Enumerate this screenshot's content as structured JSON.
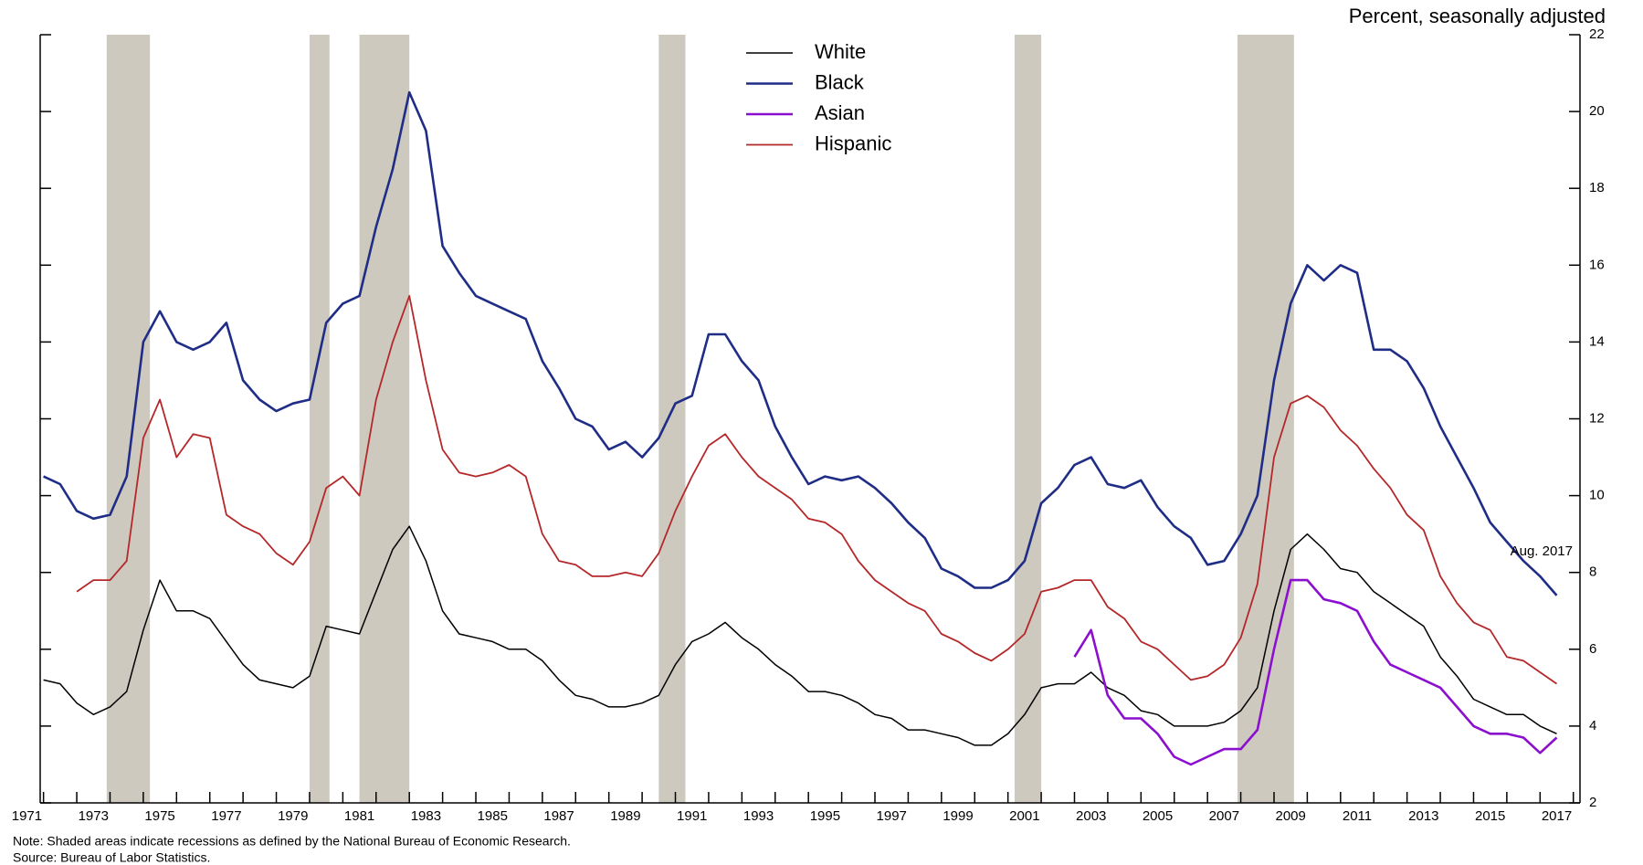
{
  "chart_data": {
    "type": "line",
    "y_label": "Percent, seasonally adjusted",
    "note": "Note: Shaded areas indicate recessions as defined by the National Bureau of Economic Research.",
    "source": "Source: Bureau of Labor Statistics.",
    "annotation": "Aug. 2017",
    "legend": "upper center",
    "xlim": [
      1971.9,
      2018.2
    ],
    "ylim": [
      2,
      22
    ],
    "yticks": [
      2,
      4,
      6,
      8,
      10,
      12,
      14,
      16,
      18,
      20,
      22
    ],
    "xticks": [
      {
        "value": 1971.5,
        "label": "1971"
      },
      {
        "value": 1973.5,
        "label": "1973"
      },
      {
        "value": 1975.5,
        "label": "1975"
      },
      {
        "value": 1977.5,
        "label": "1977"
      },
      {
        "value": 1979.5,
        "label": "1979"
      },
      {
        "value": 1981.5,
        "label": "1981"
      },
      {
        "value": 1983.5,
        "label": "1983"
      },
      {
        "value": 1985.5,
        "label": "1985"
      },
      {
        "value": 1987.5,
        "label": "1987"
      },
      {
        "value": 1989.5,
        "label": "1989"
      },
      {
        "value": 1991.5,
        "label": "1991"
      },
      {
        "value": 1993.5,
        "label": "1993"
      },
      {
        "value": 1995.5,
        "label": "1995"
      },
      {
        "value": 1997.5,
        "label": "1997"
      },
      {
        "value": 1999.5,
        "label": "1999"
      },
      {
        "value": 2001.5,
        "label": "2001"
      },
      {
        "value": 2003.5,
        "label": "2003"
      },
      {
        "value": 2005.5,
        "label": "2005"
      },
      {
        "value": 2007.5,
        "label": "2007"
      },
      {
        "value": 2009.5,
        "label": "2009"
      },
      {
        "value": 2011.5,
        "label": "2011"
      },
      {
        "value": 2013.5,
        "label": "2013"
      },
      {
        "value": 2015.5,
        "label": "2015"
      },
      {
        "value": 2017.5,
        "label": "2017"
      }
    ],
    "xtickmarks": [
      1972,
      1973,
      1974,
      1975,
      1976,
      1977,
      1978,
      1979,
      1980,
      1981,
      1982,
      1983,
      1984,
      1985,
      1986,
      1987,
      1988,
      1989,
      1990,
      1991,
      1992,
      1993,
      1994,
      1995,
      1996,
      1997,
      1998,
      1999,
      2000,
      2001,
      2002,
      2003,
      2004,
      2005,
      2006,
      2007,
      2008,
      2009,
      2010,
      2011,
      2012,
      2013,
      2014,
      2015,
      2016,
      2017,
      2018
    ],
    "recession_color": "#cdc9bf",
    "recessions": [
      [
        1973.9,
        1975.2
      ],
      [
        1980.0,
        1980.6
      ],
      [
        1981.5,
        1983.0
      ],
      [
        1990.5,
        1991.3
      ],
      [
        2001.2,
        2002.0
      ],
      [
        2007.9,
        2009.6
      ]
    ],
    "x": [
      1972.0,
      1972.5,
      1973.0,
      1973.5,
      1974.0,
      1974.5,
      1975.0,
      1975.5,
      1976.0,
      1976.5,
      1977.0,
      1977.5,
      1978.0,
      1978.5,
      1979.0,
      1979.5,
      1980.0,
      1980.5,
      1981.0,
      1981.5,
      1982.0,
      1982.5,
      1983.0,
      1983.5,
      1984.0,
      1984.5,
      1985.0,
      1985.5,
      1986.0,
      1986.5,
      1987.0,
      1987.5,
      1988.0,
      1988.5,
      1989.0,
      1989.5,
      1990.0,
      1990.5,
      1991.0,
      1991.5,
      1992.0,
      1992.5,
      1993.0,
      1993.5,
      1994.0,
      1994.5,
      1995.0,
      1995.5,
      1996.0,
      1996.5,
      1997.0,
      1997.5,
      1998.0,
      1998.5,
      1999.0,
      1999.5,
      2000.0,
      2000.5,
      2001.0,
      2001.5,
      2002.0,
      2002.5,
      2003.0,
      2003.5,
      2004.0,
      2004.5,
      2005.0,
      2005.5,
      2006.0,
      2006.5,
      2007.0,
      2007.5,
      2008.0,
      2008.5,
      2009.0,
      2009.5,
      2010.0,
      2010.5,
      2011.0,
      2011.5,
      2012.0,
      2012.5,
      2013.0,
      2013.5,
      2014.0,
      2014.5,
      2015.0,
      2015.5,
      2016.0,
      2016.5,
      2017.0,
      2017.5
    ],
    "series": [
      {
        "name": "White",
        "color": "#000000",
        "width": 1.5,
        "values": [
          5.2,
          5.1,
          4.6,
          4.3,
          4.5,
          4.9,
          6.5,
          7.8,
          7.0,
          7.0,
          6.8,
          6.2,
          5.6,
          5.2,
          5.1,
          5.0,
          5.3,
          6.6,
          6.5,
          6.4,
          7.5,
          8.6,
          9.2,
          8.3,
          7.0,
          6.4,
          6.3,
          6.2,
          6.0,
          6.0,
          5.7,
          5.2,
          4.8,
          4.7,
          4.5,
          4.5,
          4.6,
          4.8,
          5.6,
          6.2,
          6.4,
          6.7,
          6.3,
          6.0,
          5.6,
          5.3,
          4.9,
          4.9,
          4.8,
          4.6,
          4.3,
          4.2,
          3.9,
          3.9,
          3.8,
          3.7,
          3.5,
          3.5,
          3.8,
          4.3,
          5.0,
          5.1,
          5.1,
          5.4,
          5.0,
          4.8,
          4.4,
          4.3,
          4.0,
          4.0,
          4.0,
          4.1,
          4.4,
          5.0,
          7.0,
          8.6,
          9.0,
          8.6,
          8.1,
          8.0,
          7.5,
          7.2,
          6.9,
          6.6,
          5.8,
          5.3,
          4.7,
          4.5,
          4.3,
          4.3,
          4.0,
          3.8
        ]
      },
      {
        "name": "Black",
        "color": "#1f2d86",
        "width": 2.6,
        "values": [
          10.5,
          10.3,
          9.6,
          9.4,
          9.5,
          10.5,
          14.0,
          14.8,
          14.0,
          13.8,
          14.0,
          14.5,
          13.0,
          12.5,
          12.2,
          12.4,
          12.5,
          14.5,
          15.0,
          15.2,
          17.0,
          18.5,
          20.5,
          19.5,
          16.5,
          15.8,
          15.2,
          15.0,
          14.8,
          14.6,
          13.5,
          12.8,
          12.0,
          11.8,
          11.2,
          11.4,
          11.0,
          11.5,
          12.4,
          12.6,
          14.2,
          14.2,
          13.5,
          13.0,
          11.8,
          11.0,
          10.3,
          10.5,
          10.4,
          10.5,
          10.2,
          9.8,
          9.3,
          8.9,
          8.1,
          7.9,
          7.6,
          7.6,
          7.8,
          8.3,
          9.8,
          10.2,
          10.8,
          11.0,
          10.3,
          10.2,
          10.4,
          9.7,
          9.2,
          8.9,
          8.2,
          8.3,
          9.0,
          10.0,
          13.0,
          15.0,
          16.0,
          15.6,
          16.0,
          15.8,
          13.8,
          13.8,
          13.5,
          12.8,
          11.8,
          11.0,
          10.2,
          9.3,
          8.8,
          8.3,
          7.9,
          7.4
        ]
      },
      {
        "name": "Asian",
        "color": "#8b0fcf",
        "width": 2.6,
        "values": [
          null,
          null,
          null,
          null,
          null,
          null,
          null,
          null,
          null,
          null,
          null,
          null,
          null,
          null,
          null,
          null,
          null,
          null,
          null,
          null,
          null,
          null,
          null,
          null,
          null,
          null,
          null,
          null,
          null,
          null,
          null,
          null,
          null,
          null,
          null,
          null,
          null,
          null,
          null,
          null,
          null,
          null,
          null,
          null,
          null,
          null,
          null,
          null,
          null,
          null,
          null,
          null,
          null,
          null,
          null,
          null,
          null,
          null,
          null,
          null,
          null,
          null,
          5.8,
          6.5,
          4.8,
          4.2,
          4.2,
          3.8,
          3.2,
          3.0,
          3.2,
          3.4,
          3.4,
          3.9,
          6.0,
          7.8,
          7.8,
          7.3,
          7.2,
          7.0,
          6.2,
          5.6,
          5.4,
          5.2,
          5.0,
          4.5,
          4.0,
          3.8,
          3.8,
          3.7,
          3.3,
          3.7
        ]
      },
      {
        "name": "Hispanic",
        "color": "#b5282a",
        "width": 1.8,
        "values": [
          null,
          null,
          7.5,
          7.8,
          7.8,
          8.3,
          11.5,
          12.5,
          11.0,
          11.6,
          11.5,
          9.5,
          9.2,
          9.0,
          8.5,
          8.2,
          8.8,
          10.2,
          10.5,
          10.0,
          12.5,
          14.0,
          15.2,
          13.0,
          11.2,
          10.6,
          10.5,
          10.6,
          10.8,
          10.5,
          9.0,
          8.3,
          8.2,
          7.9,
          7.9,
          8.0,
          7.9,
          8.5,
          9.6,
          10.5,
          11.3,
          11.6,
          11.0,
          10.5,
          10.2,
          9.9,
          9.4,
          9.3,
          9.0,
          8.3,
          7.8,
          7.5,
          7.2,
          7.0,
          6.4,
          6.2,
          5.9,
          5.7,
          6.0,
          6.4,
          7.5,
          7.6,
          7.8,
          7.8,
          7.1,
          6.8,
          6.2,
          6.0,
          5.6,
          5.2,
          5.3,
          5.6,
          6.3,
          7.7,
          11.0,
          12.4,
          12.6,
          12.3,
          11.7,
          11.3,
          10.7,
          10.2,
          9.5,
          9.1,
          7.9,
          7.2,
          6.7,
          6.5,
          5.8,
          5.7,
          5.4,
          5.1
        ]
      }
    ]
  }
}
